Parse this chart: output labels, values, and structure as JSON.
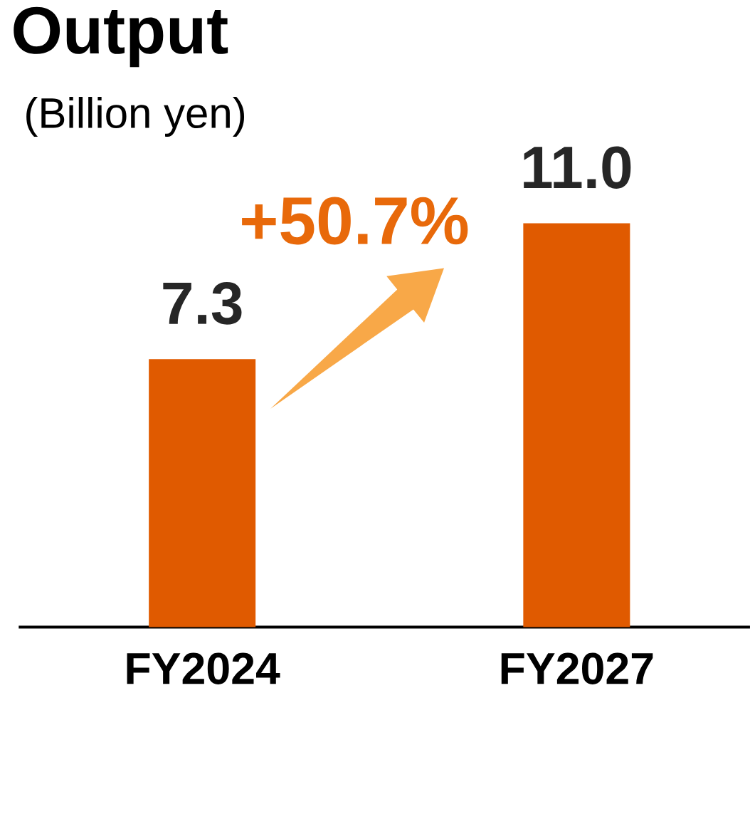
{
  "chart_data": {
    "type": "bar",
    "title": "Output",
    "subtitle": "(Billion yen)",
    "categories": [
      "FY2024",
      "FY2027"
    ],
    "values": [
      7.3,
      11.0
    ],
    "color": "#e05a00",
    "value_labels": [
      "7.3",
      "11.0"
    ],
    "annotations": [
      "+50.7%"
    ]
  }
}
